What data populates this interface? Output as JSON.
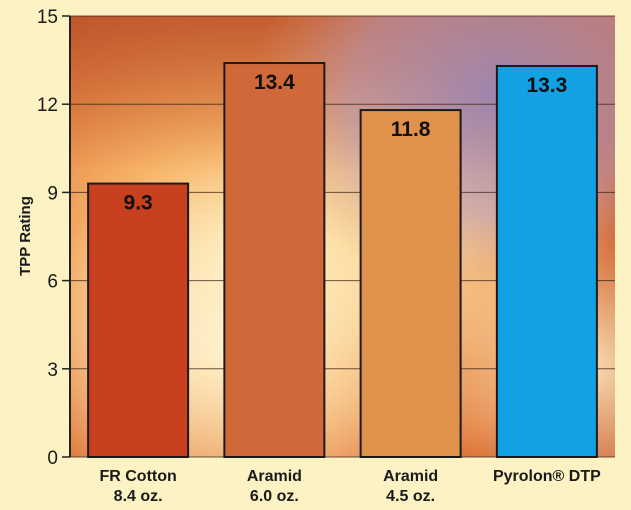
{
  "chart_data": {
    "type": "bar",
    "title": "",
    "xlabel": "",
    "ylabel": "TPP Rating",
    "ylim": [
      0,
      15
    ],
    "yticks": [
      0,
      3,
      6,
      9,
      12,
      15
    ],
    "grid": true,
    "categories": [
      {
        "line1": "FR Cotton",
        "line2": "8.4 oz."
      },
      {
        "line1": "Aramid",
        "line2": "6.0 oz."
      },
      {
        "line1": "Aramid",
        "line2": "4.5 oz."
      },
      {
        "line1": "Pyrolon® DTP",
        "line2": ""
      }
    ],
    "values": [
      9.3,
      13.4,
      11.8,
      13.3
    ],
    "value_labels": [
      "9.3",
      "13.4",
      "11.8",
      "13.3"
    ],
    "bar_colors": [
      "#c8401e",
      "#d1683a",
      "#e0914c",
      "#12a2e4"
    ],
    "background_color": "#fdf2c4"
  }
}
